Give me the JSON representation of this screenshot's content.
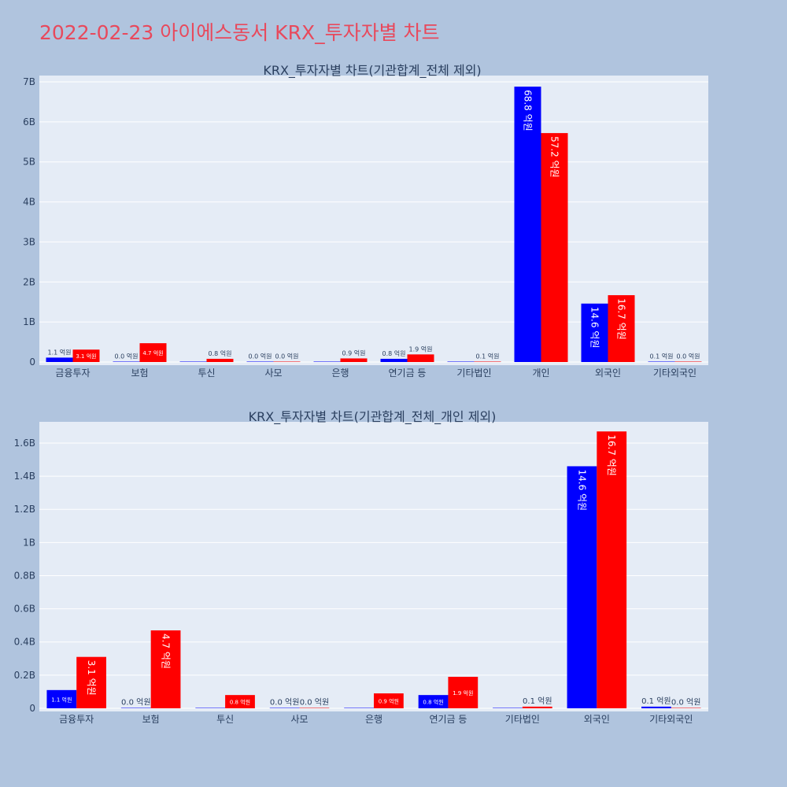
{
  "page": {
    "title": "2022-02-23 아이에스동서 KRX_투자자별 차트"
  },
  "colors": {
    "background": "#b0c4de",
    "plot_background": "#e5ecf6",
    "title": "#e8495c",
    "series_blue": "#0000ff",
    "series_red": "#ff0000",
    "text": "#2a3f5f"
  },
  "chart_data": [
    {
      "type": "bar",
      "title": "KRX_투자자별 차트(기관합계_전체 제외)",
      "categories": [
        "금융투자",
        "보험",
        "투신",
        "사모",
        "은행",
        "연기금 등",
        "기타법인",
        "개인",
        "외국인",
        "기타외국인"
      ],
      "series": [
        {
          "color": "#0000ff",
          "values": [
            110000000,
            0,
            0,
            0,
            0,
            80000000,
            0,
            6880000000,
            1460000000,
            10000000
          ],
          "labels": [
            "1.1 억원",
            "0.0 억원",
            "",
            "0.0 억원",
            "",
            "0.8 억원",
            "",
            "68.8 억원",
            "14.6 억원",
            "0.1 억원"
          ]
        },
        {
          "color": "#ff0000",
          "values": [
            310000000,
            470000000,
            80000000,
            0,
            90000000,
            190000000,
            10000000,
            5720000000,
            1670000000,
            0
          ],
          "labels": [
            "3.1 억원",
            "4.7 억원",
            "0.8 억원",
            "0.0 억원",
            "0.9 억원",
            "1.9 억원",
            "0.1 억원",
            "57.2 억원",
            "16.7 억원",
            "0.0 억원"
          ]
        }
      ],
      "y_ticks": [
        0,
        1000000000,
        2000000000,
        3000000000,
        4000000000,
        5000000000,
        6000000000,
        7000000000
      ],
      "y_tick_labels": [
        "0",
        "1B",
        "2B",
        "3B",
        "4B",
        "5B",
        "6B",
        "7B"
      ],
      "ylim": [
        0,
        7000000000
      ],
      "grid": true
    },
    {
      "type": "bar",
      "title": "KRX_투자자별 차트(기관합계_전체_개인 제외)",
      "categories": [
        "금융투자",
        "보험",
        "투신",
        "사모",
        "은행",
        "연기금 등",
        "기타법인",
        "외국인",
        "기타외국인"
      ],
      "series": [
        {
          "color": "#0000ff",
          "values": [
            110000000,
            0,
            0,
            0,
            0,
            80000000,
            0,
            1460000000,
            10000000
          ],
          "labels": [
            "1.1 억원",
            "0.0 억원",
            "",
            "0.0 억원",
            "",
            "0.8 억원",
            "",
            "14.6 억원",
            "0.1 억원"
          ]
        },
        {
          "color": "#ff0000",
          "values": [
            310000000,
            470000000,
            80000000,
            0,
            90000000,
            190000000,
            10000000,
            1670000000,
            0
          ],
          "labels": [
            "3.1 억원",
            "4.7 억원",
            "0.8 억원",
            "0.0 억원",
            "0.9 억원",
            "1.9 억원",
            "0.1 억원",
            "16.7 억원",
            "0.0 억원"
          ]
        }
      ],
      "y_ticks": [
        0,
        200000000,
        400000000,
        600000000,
        800000000,
        1000000000,
        1200000000,
        1400000000,
        1600000000
      ],
      "y_tick_labels": [
        "0",
        "0.2B",
        "0.4B",
        "0.6B",
        "0.8B",
        "1B",
        "1.2B",
        "1.4B",
        "1.6B"
      ],
      "ylim": [
        0,
        1690000000
      ],
      "grid": true
    }
  ]
}
